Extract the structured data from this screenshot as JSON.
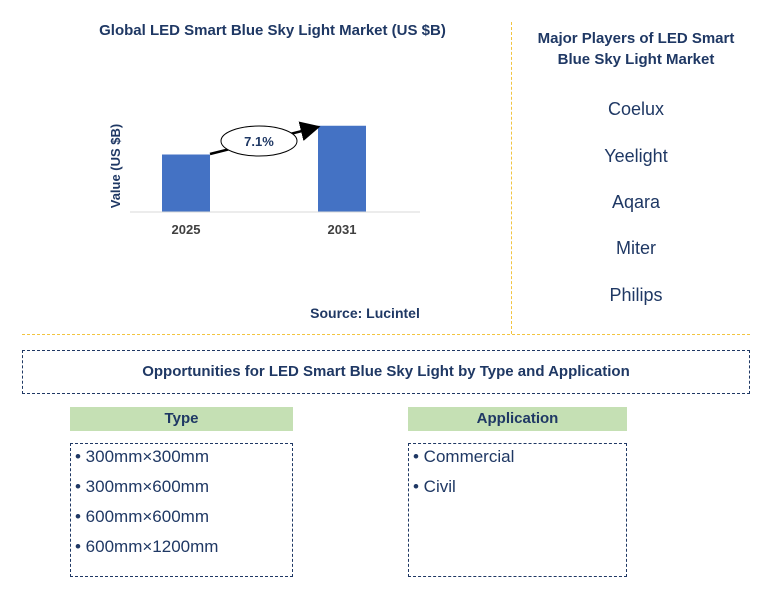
{
  "chart_data": {
    "type": "bar",
    "title": "Global LED Smart Blue Sky Light Market (US $B)",
    "ylabel": "Value (US $B)",
    "categories": [
      "2025",
      "2031"
    ],
    "values": [
      1.0,
      1.5
    ],
    "ylim": [
      0,
      1.6
    ],
    "bar_color": "#4472c4",
    "annotation": "7.1%",
    "grid": false,
    "source": "Source: Lucintel"
  },
  "players": {
    "title": "Major Players of LED Smart Blue Sky Light Market",
    "items": [
      "Coelux",
      "Yeelight",
      "Aqara",
      "Miter",
      "Philips"
    ]
  },
  "opportunities": {
    "title": "Opportunities for LED Smart Blue Sky Light by Type and Application",
    "type": {
      "header": "Type",
      "items": [
        "• 300mm×300mm",
        "• 300mm×600mm",
        "• 600mm×600mm",
        "• 600mm×1200mm"
      ]
    },
    "application": {
      "header": "Application",
      "items": [
        "• Commercial",
        "• Civil"
      ]
    }
  },
  "colors": {
    "text": "#1f3864",
    "divider": "#f2c440",
    "header_fill": "#c5e0b4"
  }
}
